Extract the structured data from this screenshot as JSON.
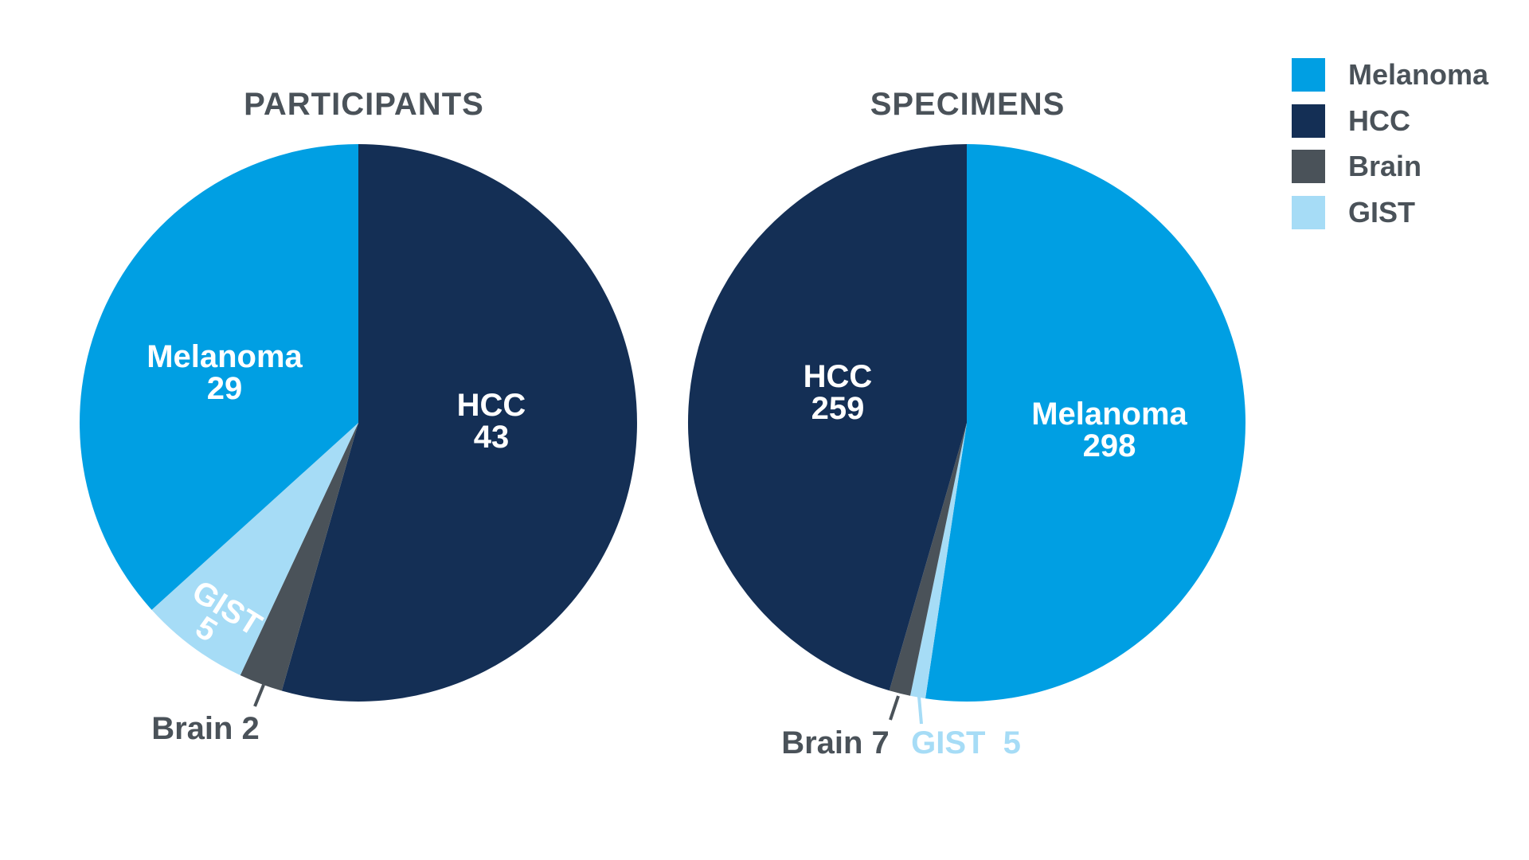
{
  "chart_data": [
    {
      "type": "pie",
      "title": "PARTICIPANTS",
      "slices": [
        {
          "name": "HCC",
          "value": 43,
          "color": "#142f55"
        },
        {
          "name": "Brain",
          "value": 2,
          "color": "#4a5259"
        },
        {
          "name": "GIST",
          "value": 5,
          "color": "#a6dcf6"
        },
        {
          "name": "Melanoma",
          "value": 29,
          "color": "#009fe3"
        }
      ],
      "start": "12 o'clock",
      "direction": "clockwise",
      "labels": {
        "hcc": {
          "name": "HCC",
          "value": "43"
        },
        "melanoma": {
          "name": "Melanoma",
          "value": "29"
        },
        "gist": {
          "name": "GIST",
          "value": "5"
        },
        "brain": {
          "text": "Brain 2"
        }
      }
    },
    {
      "type": "pie",
      "title": "SPECIMENS",
      "slices": [
        {
          "name": "Melanoma",
          "value": 298,
          "color": "#009fe3"
        },
        {
          "name": "GIST",
          "value": 5,
          "color": "#a6dcf6"
        },
        {
          "name": "Brain",
          "value": 7,
          "color": "#4a5259"
        },
        {
          "name": "HCC",
          "value": 259,
          "color": "#142f55"
        }
      ],
      "start": "12 o'clock",
      "direction": "clockwise",
      "labels": {
        "hcc": {
          "name": "HCC",
          "value": "259"
        },
        "melanoma": {
          "name": "Melanoma",
          "value": "298"
        },
        "brain": {
          "text": "Brain 7"
        },
        "gist": {
          "text": "GIST  5"
        }
      }
    }
  ],
  "legend": {
    "placement": "top-right",
    "items": [
      {
        "label": "Melanoma",
        "color": "#009fe3"
      },
      {
        "label": "HCC",
        "color": "#142f55"
      },
      {
        "label": "Brain",
        "color": "#4a5259"
      },
      {
        "label": "GIST",
        "color": "#a6dcf6"
      }
    ]
  }
}
